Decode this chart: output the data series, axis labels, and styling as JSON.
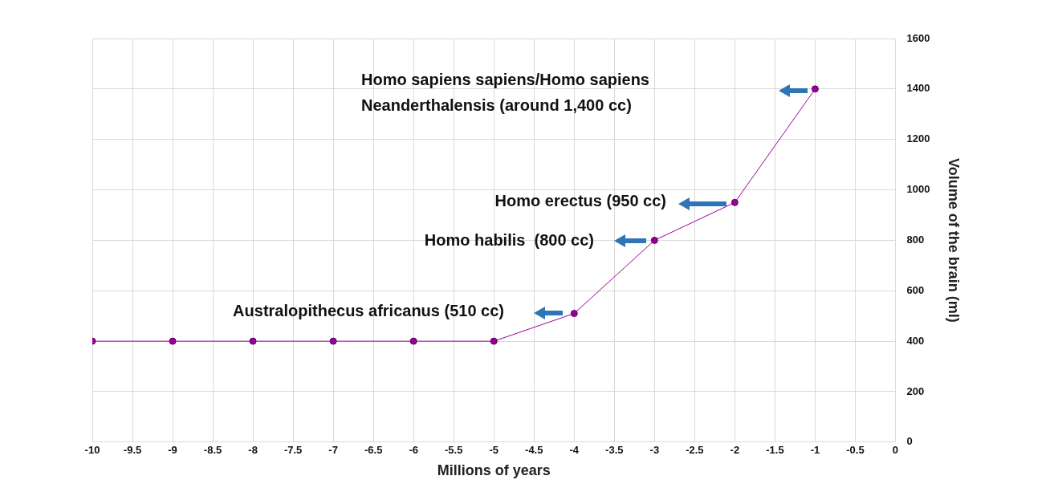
{
  "chart_data": {
    "type": "line",
    "xlabel": "Millions of years",
    "ylabel": "Volume of the brain (ml)",
    "x": [
      -10,
      -9,
      -8,
      -7,
      -6,
      -5,
      -4,
      -3,
      -2,
      -1
    ],
    "series": [
      {
        "color": "#990099",
        "values": [
          400,
          400,
          400,
          400,
          400,
          400,
          510,
          800,
          950,
          1400
        ]
      }
    ],
    "xlim": [
      -10,
      0
    ],
    "xticks": [
      -10,
      -9.5,
      -9,
      -8.5,
      -8,
      -7.5,
      -7,
      -6.5,
      -6,
      -5.5,
      -5,
      -4.5,
      -4,
      -3.5,
      -3,
      -2.5,
      -2,
      -1.5,
      -1,
      -0.5,
      0
    ],
    "ylim": [
      0,
      1600
    ],
    "yticks": [
      0,
      200,
      400,
      600,
      800,
      1000,
      1200,
      1400,
      1600
    ],
    "grid": true,
    "legend": false,
    "marker": "circle",
    "line_style": "solid",
    "annotations": [
      "Homo sapiens sapiens/Homo sapiens Neanderthalensis (around 1,400 cc)",
      "Homo erectus (950 cc)",
      "Homo habilis  (800 cc)",
      "Australopithecus africanus (510 cc)"
    ]
  }
}
